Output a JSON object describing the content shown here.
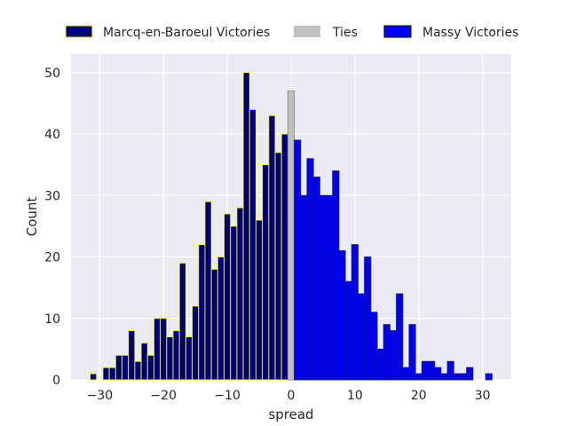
{
  "chart_data": {
    "type": "bar",
    "xlabel": "spread",
    "ylabel": "Count",
    "xlim": [
      -34.5,
      34.5
    ],
    "ylim": [
      0,
      53
    ],
    "xticks": [
      -30,
      -20,
      -10,
      0,
      10,
      20,
      30
    ],
    "xtick_labels": [
      "−30",
      "−20",
      "−10",
      "0",
      "10",
      "20",
      "30"
    ],
    "yticks": [
      0,
      10,
      20,
      30,
      40,
      50
    ],
    "ytick_labels": [
      "0",
      "10",
      "20",
      "30",
      "40",
      "50"
    ],
    "grid": true,
    "legend_position": "top",
    "background": "#eaeaf2",
    "series": [
      {
        "name": "Marcq-en-Baroeul Victories",
        "fill": "#00007f",
        "edge": "#ffff00",
        "x": [
          -31,
          -29,
          -28,
          -27,
          -26,
          -25,
          -24,
          -23,
          -22,
          -21,
          -20,
          -19,
          -18,
          -17,
          -16,
          -15,
          -14,
          -13,
          -12,
          -11,
          -10,
          -9,
          -8,
          -7,
          -6,
          -5,
          -4,
          -3,
          -2,
          -1
        ],
        "values": [
          1,
          2,
          2,
          4,
          4,
          8,
          3,
          6,
          4,
          10,
          10,
          7,
          8,
          19,
          7,
          12,
          22,
          29,
          18,
          20,
          27,
          25,
          28,
          50,
          44,
          26,
          35,
          43,
          37,
          40
        ]
      },
      {
        "name": "Ties",
        "fill": "#c0c0c0",
        "edge": "#8a8a8a",
        "x": [
          0
        ],
        "values": [
          47
        ]
      },
      {
        "name": "Massy Victories",
        "fill": "#0000ff",
        "edge": "#1a1a4a",
        "x": [
          1,
          2,
          3,
          4,
          5,
          6,
          7,
          8,
          9,
          10,
          11,
          12,
          13,
          14,
          15,
          16,
          17,
          18,
          19,
          20,
          21,
          22,
          23,
          24,
          25,
          26,
          27,
          28,
          31
        ],
        "values": [
          39,
          30,
          36,
          33,
          30,
          30,
          34,
          21,
          16,
          22,
          14,
          20,
          11,
          5,
          9,
          8,
          14,
          2,
          9,
          1,
          3,
          3,
          2,
          1,
          3,
          1,
          1,
          2,
          1
        ]
      }
    ]
  }
}
